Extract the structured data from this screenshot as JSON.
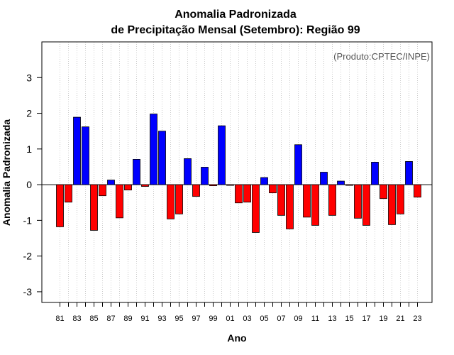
{
  "chart_data": {
    "type": "bar",
    "title_line1": "Anomalia Padronizada",
    "title_line2": "de Precipitação Mensal (Setembro): Região 99",
    "xlabel": "Ano",
    "ylabel": "Anomalia Padronizada",
    "credit": "(Produto:CPTEC/INPE)",
    "ylim": [
      -3.3,
      4.0
    ],
    "yticks": [
      -3,
      -2,
      -1,
      0,
      1,
      2,
      3
    ],
    "grid": "vertical dotted",
    "colors": {
      "positive": "#0000ff",
      "negative": "#ff0000"
    },
    "categories": [
      "81",
      "82",
      "83",
      "84",
      "85",
      "86",
      "87",
      "88",
      "89",
      "90",
      "91",
      "92",
      "93",
      "94",
      "95",
      "96",
      "97",
      "98",
      "99",
      "00",
      "01",
      "02",
      "03",
      "04",
      "05",
      "06",
      "07",
      "08",
      "09",
      "10",
      "11",
      "12",
      "13",
      "14",
      "15",
      "16",
      "17",
      "18",
      "19",
      "20",
      "21",
      "22",
      "23"
    ],
    "tick_labels": [
      "81",
      "83",
      "85",
      "87",
      "89",
      "91",
      "93",
      "95",
      "97",
      "99",
      "01",
      "03",
      "05",
      "07",
      "09",
      "11",
      "13",
      "15",
      "17",
      "19",
      "21",
      "23"
    ],
    "values": [
      -1.18,
      -0.49,
      1.89,
      1.62,
      -1.28,
      -0.31,
      0.13,
      -0.93,
      -0.15,
      0.71,
      -0.05,
      1.98,
      1.5,
      -0.96,
      -0.82,
      0.73,
      -0.33,
      0.49,
      -0.03,
      1.65,
      -0.01,
      -0.51,
      -0.49,
      -1.34,
      0.2,
      -0.23,
      -0.86,
      -1.24,
      1.12,
      -0.91,
      -1.14,
      0.35,
      -0.86,
      0.1,
      -0.01,
      -0.94,
      -1.14,
      0.63,
      -0.39,
      -1.12,
      -0.82,
      0.65,
      -0.35
    ]
  }
}
